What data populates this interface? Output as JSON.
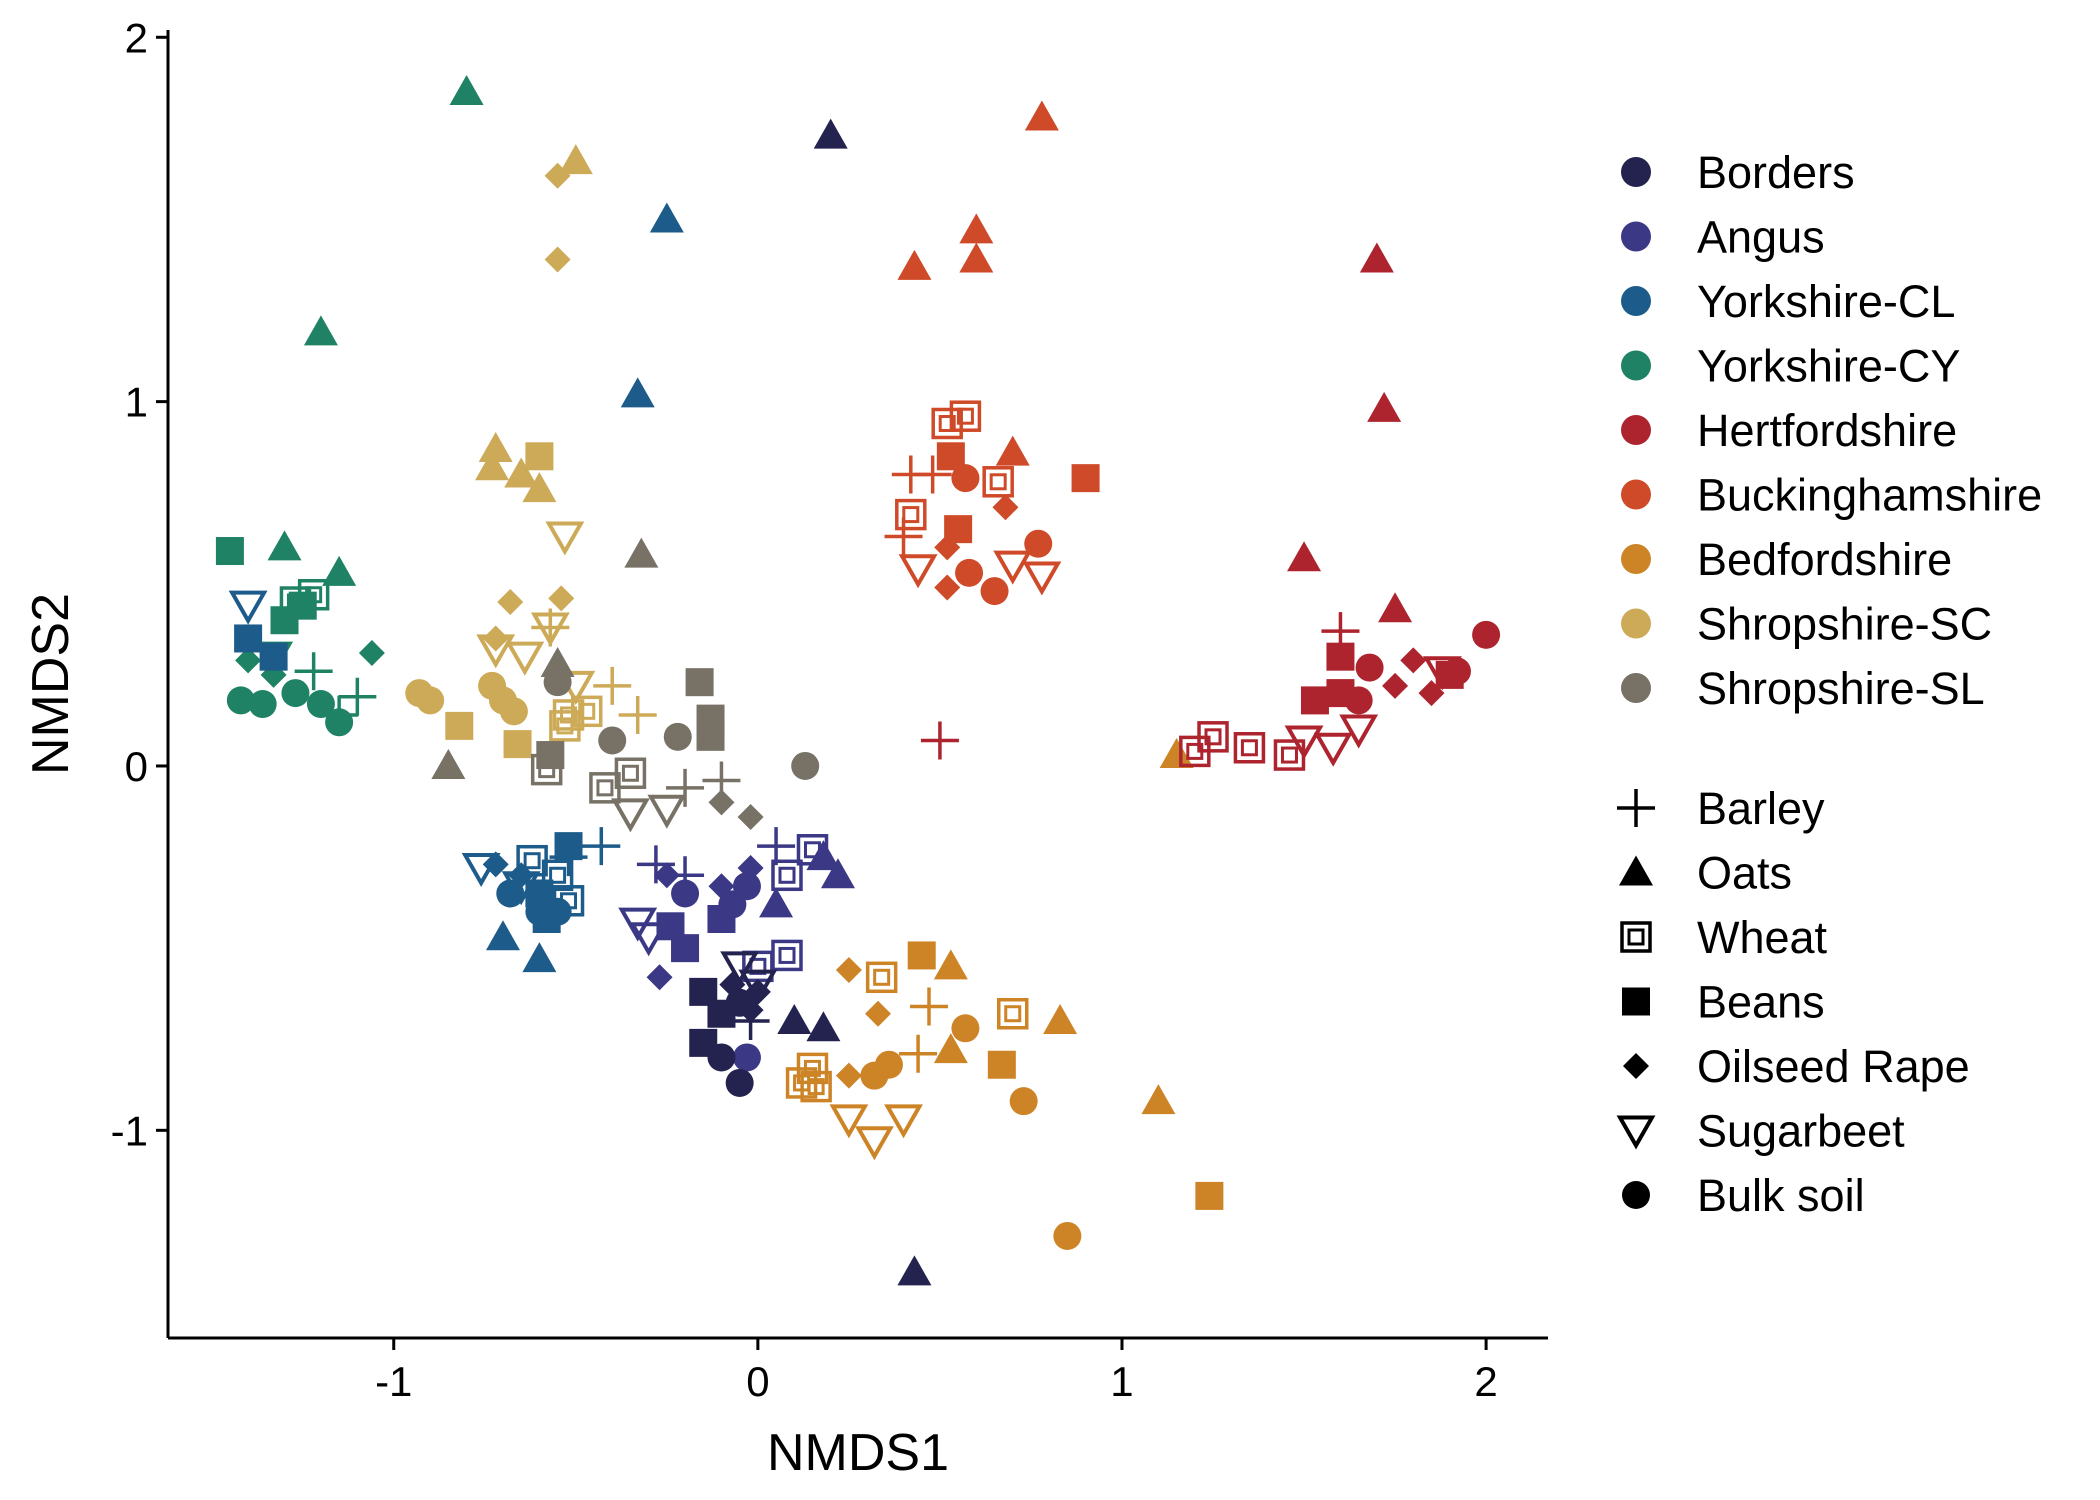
{
  "chart_data": {
    "type": "scatter",
    "xlabel": "NMDS1",
    "ylabel": "NMDS2",
    "xlim": [
      -1.62,
      2.17
    ],
    "ylim": [
      -1.57,
      2.02
    ],
    "xticks": [
      -1,
      0,
      1,
      2
    ],
    "yticks": [
      -1,
      0,
      1,
      2
    ],
    "grid": false,
    "legend_position": "right",
    "sites": [
      {
        "name": "Borders",
        "color": "#24224f"
      },
      {
        "name": "Angus",
        "color": "#3b3886"
      },
      {
        "name": "Yorkshire-CL",
        "color": "#1d5c8a"
      },
      {
        "name": "Yorkshire-CY",
        "color": "#1f8264"
      },
      {
        "name": "Hertfordshire",
        "color": "#ad242e"
      },
      {
        "name": "Buckinghamshire",
        "color": "#cf4a28"
      },
      {
        "name": "Bedfordshire",
        "color": "#cd8426"
      },
      {
        "name": "Shropshire-SC",
        "color": "#cdaa57"
      },
      {
        "name": "Shropshire-SL",
        "color": "#777166"
      }
    ],
    "crops": [
      {
        "name": "Barley",
        "shape": "plus"
      },
      {
        "name": "Oats",
        "shape": "triangle"
      },
      {
        "name": "Wheat",
        "shape": "double-square"
      },
      {
        "name": "Beans",
        "shape": "square"
      },
      {
        "name": "Oilseed Rape",
        "shape": "diamond"
      },
      {
        "name": "Sugarbeet",
        "shape": "down-triangle-open"
      },
      {
        "name": "Bulk soil",
        "shape": "circle"
      }
    ],
    "points": [
      [
        "Yorkshire-CY",
        "Oats",
        -0.8,
        1.85
      ],
      [
        "Yorkshire-CY",
        "Oats",
        -1.2,
        1.19
      ],
      [
        "Yorkshire-CY",
        "Oats",
        -1.3,
        0.6
      ],
      [
        "Yorkshire-CY",
        "Oats",
        -1.15,
        0.53
      ],
      [
        "Yorkshire-CY",
        "Beans",
        -1.45,
        0.59
      ],
      [
        "Yorkshire-CY",
        "Beans",
        -1.3,
        0.4
      ],
      [
        "Yorkshire-CY",
        "Beans",
        -1.25,
        0.44
      ],
      [
        "Yorkshire-CY",
        "Wheat",
        -1.27,
        0.45
      ],
      [
        "Yorkshire-CY",
        "Wheat",
        -1.22,
        0.47
      ],
      [
        "Yorkshire-CY",
        "Oilseed Rape",
        -1.4,
        0.29
      ],
      [
        "Yorkshire-CY",
        "Oilseed Rape",
        -1.33,
        0.25
      ],
      [
        "Yorkshire-CY",
        "Oilseed Rape",
        -1.06,
        0.31
      ],
      [
        "Yorkshire-CY",
        "Bulk soil",
        -1.42,
        0.18
      ],
      [
        "Yorkshire-CY",
        "Bulk soil",
        -1.36,
        0.17
      ],
      [
        "Yorkshire-CY",
        "Bulk soil",
        -1.27,
        0.2
      ],
      [
        "Yorkshire-CY",
        "Bulk soil",
        -1.2,
        0.17
      ],
      [
        "Yorkshire-CY",
        "Bulk soil",
        -1.15,
        0.12
      ],
      [
        "Yorkshire-CY",
        "Barley",
        -1.22,
        0.26
      ],
      [
        "Yorkshire-CY",
        "Barley",
        -1.1,
        0.19
      ],
      [
        "Yorkshire-CY",
        "Barley",
        -1.15,
        0.14
      ],
      [
        "Yorkshire-CY",
        "Sugarbeet",
        -1.33,
        0.3
      ],
      [
        "Yorkshire-CL",
        "Oats",
        -0.25,
        1.5
      ],
      [
        "Yorkshire-CL",
        "Oats",
        -0.33,
        1.02
      ],
      [
        "Yorkshire-CL",
        "Oats",
        -0.7,
        -0.47
      ],
      [
        "Yorkshire-CL",
        "Oats",
        -0.6,
        -0.53
      ],
      [
        "Yorkshire-CL",
        "Sugarbeet",
        -1.4,
        0.44
      ],
      [
        "Yorkshire-CL",
        "Sugarbeet",
        -0.76,
        -0.28
      ],
      [
        "Yorkshire-CL",
        "Sugarbeet",
        -0.65,
        -0.33
      ],
      [
        "Yorkshire-CL",
        "Beans",
        -1.4,
        0.35
      ],
      [
        "Yorkshire-CL",
        "Beans",
        -1.33,
        0.3
      ],
      [
        "Yorkshire-CL",
        "Beans",
        -0.6,
        -0.35
      ],
      [
        "Yorkshire-CL",
        "Beans",
        -0.52,
        -0.22
      ],
      [
        "Yorkshire-CL",
        "Beans",
        -0.58,
        -0.42
      ],
      [
        "Yorkshire-CL",
        "Wheat",
        -0.62,
        -0.26
      ],
      [
        "Yorkshire-CL",
        "Wheat",
        -0.55,
        -0.3
      ],
      [
        "Yorkshire-CL",
        "Wheat",
        -0.52,
        -0.37
      ],
      [
        "Yorkshire-CL",
        "Bulk soil",
        -0.68,
        -0.35
      ],
      [
        "Yorkshire-CL",
        "Bulk soil",
        -0.6,
        -0.4
      ],
      [
        "Yorkshire-CL",
        "Bulk soil",
        -0.55,
        -0.4
      ],
      [
        "Yorkshire-CL",
        "Oilseed Rape",
        -0.65,
        -0.3
      ],
      [
        "Yorkshire-CL",
        "Oilseed Rape",
        -0.72,
        -0.27
      ],
      [
        "Yorkshire-CL",
        "Barley",
        -0.43,
        -0.22
      ],
      [
        "Yorkshire-CL",
        "Barley",
        -0.52,
        -0.25
      ],
      [
        "Shropshire-SC",
        "Oats",
        -0.5,
        1.66
      ],
      [
        "Shropshire-SC",
        "Oats",
        -0.72,
        0.87
      ],
      [
        "Shropshire-SC",
        "Oats",
        -0.73,
        0.82
      ],
      [
        "Shropshire-SC",
        "Oats",
        -0.65,
        0.8
      ],
      [
        "Shropshire-SC",
        "Oats",
        -0.6,
        0.76
      ],
      [
        "Shropshire-SC",
        "Oilseed Rape",
        -0.55,
        1.62
      ],
      [
        "Shropshire-SC",
        "Oilseed Rape",
        -0.55,
        1.39
      ],
      [
        "Shropshire-SC",
        "Oilseed Rape",
        -0.68,
        0.45
      ],
      [
        "Shropshire-SC",
        "Oilseed Rape",
        -0.54,
        0.46
      ],
      [
        "Shropshire-SC",
        "Oilseed Rape",
        -0.72,
        0.35
      ],
      [
        "Shropshire-SC",
        "Beans",
        -0.6,
        0.85
      ],
      [
        "Shropshire-SC",
        "Beans",
        -0.82,
        0.11
      ],
      [
        "Shropshire-SC",
        "Beans",
        -0.66,
        0.06
      ],
      [
        "Shropshire-SC",
        "Sugarbeet",
        -0.53,
        0.63
      ],
      [
        "Shropshire-SC",
        "Sugarbeet",
        -0.57,
        0.38
      ],
      [
        "Shropshire-SC",
        "Sugarbeet",
        -0.72,
        0.32
      ],
      [
        "Shropshire-SC",
        "Sugarbeet",
        -0.64,
        0.3
      ],
      [
        "Shropshire-SC",
        "Sugarbeet",
        -0.5,
        0.22
      ],
      [
        "Shropshire-SC",
        "Bulk soil",
        -0.93,
        0.2
      ],
      [
        "Shropshire-SC",
        "Bulk soil",
        -0.9,
        0.18
      ],
      [
        "Shropshire-SC",
        "Bulk soil",
        -0.73,
        0.22
      ],
      [
        "Shropshire-SC",
        "Bulk soil",
        -0.7,
        0.18
      ],
      [
        "Shropshire-SC",
        "Bulk soil",
        -0.67,
        0.15
      ],
      [
        "Shropshire-SC",
        "Wheat",
        -0.52,
        0.14
      ],
      [
        "Shropshire-SC",
        "Wheat",
        -0.47,
        0.15
      ],
      [
        "Shropshire-SC",
        "Wheat",
        -0.53,
        0.11
      ],
      [
        "Shropshire-SC",
        "Barley",
        -0.57,
        0.38
      ],
      [
        "Shropshire-SC",
        "Barley",
        -0.4,
        0.22
      ],
      [
        "Shropshire-SC",
        "Barley",
        -0.33,
        0.14
      ],
      [
        "Shropshire-SL",
        "Oats",
        -0.32,
        0.58
      ],
      [
        "Shropshire-SL",
        "Oats",
        -0.85,
        0.0
      ],
      [
        "Shropshire-SL",
        "Oats",
        -0.55,
        0.28
      ],
      [
        "Shropshire-SL",
        "Bulk soil",
        -0.55,
        0.23
      ],
      [
        "Shropshire-SL",
        "Bulk soil",
        -0.4,
        0.07
      ],
      [
        "Shropshire-SL",
        "Bulk soil",
        -0.22,
        0.08
      ],
      [
        "Shropshire-SL",
        "Bulk soil",
        0.13,
        0.0
      ],
      [
        "Shropshire-SL",
        "Beans",
        -0.57,
        0.03
      ],
      [
        "Shropshire-SL",
        "Beans",
        -0.16,
        0.23
      ],
      [
        "Shropshire-SL",
        "Beans",
        -0.13,
        0.13
      ],
      [
        "Shropshire-SL",
        "Beans",
        -0.13,
        0.08
      ],
      [
        "Shropshire-SL",
        "Wheat",
        -0.58,
        -0.01
      ],
      [
        "Shropshire-SL",
        "Wheat",
        -0.42,
        -0.06
      ],
      [
        "Shropshire-SL",
        "Wheat",
        -0.35,
        -0.02
      ],
      [
        "Shropshire-SL",
        "Sugarbeet",
        -0.35,
        -0.13
      ],
      [
        "Shropshire-SL",
        "Sugarbeet",
        -0.25,
        -0.12
      ],
      [
        "Shropshire-SL",
        "Oilseed Rape",
        -0.1,
        -0.1
      ],
      [
        "Shropshire-SL",
        "Oilseed Rape",
        -0.02,
        -0.14
      ],
      [
        "Shropshire-SL",
        "Barley",
        -0.1,
        -0.04
      ],
      [
        "Shropshire-SL",
        "Barley",
        -0.2,
        -0.06
      ],
      [
        "Angus",
        "Barley",
        -0.28,
        -0.27
      ],
      [
        "Angus",
        "Barley",
        -0.2,
        -0.3
      ],
      [
        "Angus",
        "Barley",
        0.05,
        -0.22
      ],
      [
        "Angus",
        "Oilseed Rape",
        -0.25,
        -0.3
      ],
      [
        "Angus",
        "Oilseed Rape",
        -0.1,
        -0.33
      ],
      [
        "Angus",
        "Oilseed Rape",
        -0.02,
        -0.28
      ],
      [
        "Angus",
        "Oilseed Rape",
        -0.27,
        -0.58
      ],
      [
        "Angus",
        "Wheat",
        0.15,
        -0.23
      ],
      [
        "Angus",
        "Wheat",
        0.08,
        -0.3
      ],
      [
        "Angus",
        "Wheat",
        0.08,
        -0.52
      ],
      [
        "Angus",
        "Wheat",
        0.0,
        -0.55
      ],
      [
        "Angus",
        "Oats",
        0.18,
        -0.25
      ],
      [
        "Angus",
        "Oats",
        0.22,
        -0.3
      ],
      [
        "Angus",
        "Oats",
        0.05,
        -0.38
      ],
      [
        "Angus",
        "Sugarbeet",
        -0.33,
        -0.43
      ],
      [
        "Angus",
        "Sugarbeet",
        -0.3,
        -0.47
      ],
      [
        "Angus",
        "Beans",
        -0.24,
        -0.44
      ],
      [
        "Angus",
        "Beans",
        -0.2,
        -0.5
      ],
      [
        "Angus",
        "Beans",
        -0.1,
        -0.42
      ],
      [
        "Angus",
        "Bulk soil",
        -0.2,
        -0.35
      ],
      [
        "Angus",
        "Bulk soil",
        -0.07,
        -0.38
      ],
      [
        "Angus",
        "Bulk soil",
        -0.03,
        -0.33
      ],
      [
        "Angus",
        "Bulk soil",
        -0.03,
        -0.8
      ],
      [
        "Borders",
        "Oats",
        0.2,
        1.73
      ],
      [
        "Borders",
        "Oats",
        0.43,
        -1.39
      ],
      [
        "Borders",
        "Oats",
        0.1,
        -0.7
      ],
      [
        "Borders",
        "Oats",
        0.18,
        -0.72
      ],
      [
        "Borders",
        "Beans",
        -0.15,
        -0.62
      ],
      [
        "Borders",
        "Beans",
        -0.1,
        -0.68
      ],
      [
        "Borders",
        "Beans",
        -0.15,
        -0.76
      ],
      [
        "Borders",
        "Bulk soil",
        -0.05,
        -0.65
      ],
      [
        "Borders",
        "Bulk soil",
        -0.1,
        -0.8
      ],
      [
        "Borders",
        "Bulk soil",
        -0.05,
        -0.87
      ],
      [
        "Borders",
        "Oilseed Rape",
        -0.07,
        -0.6
      ],
      [
        "Borders",
        "Oilseed Rape",
        -0.02,
        -0.67
      ],
      [
        "Borders",
        "Oilseed Rape",
        0.0,
        -0.62
      ],
      [
        "Borders",
        "Sugarbeet",
        -0.05,
        -0.55
      ],
      [
        "Borders",
        "Sugarbeet",
        0.0,
        -0.6
      ],
      [
        "Borders",
        "Barley",
        -0.02,
        -0.7
      ],
      [
        "Bedfordshire",
        "Beans",
        0.45,
        -0.52
      ],
      [
        "Bedfordshire",
        "Beans",
        0.67,
        -0.82
      ],
      [
        "Bedfordshire",
        "Beans",
        1.24,
        -1.18
      ],
      [
        "Bedfordshire",
        "Oats",
        0.53,
        -0.55
      ],
      [
        "Bedfordshire",
        "Oats",
        0.83,
        -0.7
      ],
      [
        "Bedfordshire",
        "Oats",
        1.1,
        -0.92
      ],
      [
        "Bedfordshire",
        "Oats",
        0.53,
        -0.78
      ],
      [
        "Bedfordshire",
        "Oats",
        1.15,
        0.03
      ],
      [
        "Bedfordshire",
        "Wheat",
        0.34,
        -0.58
      ],
      [
        "Bedfordshire",
        "Wheat",
        0.7,
        -0.68
      ],
      [
        "Bedfordshire",
        "Wheat",
        0.15,
        -0.83
      ],
      [
        "Bedfordshire",
        "Wheat",
        0.16,
        -0.88
      ],
      [
        "Bedfordshire",
        "Wheat",
        0.12,
        -0.87
      ],
      [
        "Bedfordshire",
        "Oilseed Rape",
        0.25,
        -0.56
      ],
      [
        "Bedfordshire",
        "Oilseed Rape",
        0.33,
        -0.68
      ],
      [
        "Bedfordshire",
        "Oilseed Rape",
        0.25,
        -0.85
      ],
      [
        "Bedfordshire",
        "Barley",
        0.47,
        -0.66
      ],
      [
        "Bedfordshire",
        "Barley",
        0.44,
        -0.79
      ],
      [
        "Bedfordshire",
        "Bulk soil",
        0.57,
        -0.72
      ],
      [
        "Bedfordshire",
        "Bulk soil",
        0.36,
        -0.82
      ],
      [
        "Bedfordshire",
        "Bulk soil",
        0.32,
        -0.85
      ],
      [
        "Bedfordshire",
        "Bulk soil",
        0.73,
        -0.92
      ],
      [
        "Bedfordshire",
        "Bulk soil",
        0.85,
        -1.29
      ],
      [
        "Bedfordshire",
        "Sugarbeet",
        0.25,
        -0.97
      ],
      [
        "Bedfordshire",
        "Sugarbeet",
        0.32,
        -1.03
      ],
      [
        "Bedfordshire",
        "Sugarbeet",
        0.4,
        -0.97
      ],
      [
        "Buckinghamshire",
        "Oats",
        0.78,
        1.78
      ],
      [
        "Buckinghamshire",
        "Oats",
        0.6,
        1.47
      ],
      [
        "Buckinghamshire",
        "Oats",
        0.6,
        1.39
      ],
      [
        "Buckinghamshire",
        "Oats",
        0.43,
        1.37
      ],
      [
        "Buckinghamshire",
        "Oats",
        0.7,
        0.86
      ],
      [
        "Buckinghamshire",
        "Wheat",
        0.57,
        0.96
      ],
      [
        "Buckinghamshire",
        "Wheat",
        0.52,
        0.94
      ],
      [
        "Buckinghamshire",
        "Wheat",
        0.42,
        0.69
      ],
      [
        "Buckinghamshire",
        "Wheat",
        0.66,
        0.78
      ],
      [
        "Buckinghamshire",
        "Beans",
        0.53,
        0.85
      ],
      [
        "Buckinghamshire",
        "Beans",
        0.9,
        0.79
      ],
      [
        "Buckinghamshire",
        "Beans",
        0.55,
        0.65
      ],
      [
        "Buckinghamshire",
        "Barley",
        0.42,
        0.8
      ],
      [
        "Buckinghamshire",
        "Barley",
        0.48,
        0.8
      ],
      [
        "Buckinghamshire",
        "Barley",
        0.4,
        0.63
      ],
      [
        "Buckinghamshire",
        "Bulk soil",
        0.57,
        0.79
      ],
      [
        "Buckinghamshire",
        "Bulk soil",
        0.58,
        0.53
      ],
      [
        "Buckinghamshire",
        "Bulk soil",
        0.65,
        0.48
      ],
      [
        "Buckinghamshire",
        "Bulk soil",
        0.77,
        0.61
      ],
      [
        "Buckinghamshire",
        "Oilseed Rape",
        0.52,
        0.6
      ],
      [
        "Buckinghamshire",
        "Oilseed Rape",
        0.52,
        0.49
      ],
      [
        "Buckinghamshire",
        "Oilseed Rape",
        0.68,
        0.71
      ],
      [
        "Buckinghamshire",
        "Sugarbeet",
        0.44,
        0.54
      ],
      [
        "Buckinghamshire",
        "Sugarbeet",
        0.7,
        0.55
      ],
      [
        "Buckinghamshire",
        "Sugarbeet",
        0.78,
        0.52
      ],
      [
        "Hertfordshire",
        "Oats",
        1.7,
        1.39
      ],
      [
        "Hertfordshire",
        "Oats",
        1.72,
        0.98
      ],
      [
        "Hertfordshire",
        "Oats",
        1.5,
        0.57
      ],
      [
        "Hertfordshire",
        "Oats",
        1.75,
        0.43
      ],
      [
        "Hertfordshire",
        "Barley",
        1.6,
        0.37
      ],
      [
        "Hertfordshire",
        "Barley",
        0.5,
        0.07
      ],
      [
        "Hertfordshire",
        "Beans",
        1.6,
        0.3
      ],
      [
        "Hertfordshire",
        "Beans",
        1.9,
        0.25
      ],
      [
        "Hertfordshire",
        "Beans",
        1.53,
        0.18
      ],
      [
        "Hertfordshire",
        "Beans",
        1.6,
        0.2
      ],
      [
        "Hertfordshire",
        "Bulk soil",
        1.68,
        0.27
      ],
      [
        "Hertfordshire",
        "Bulk soil",
        2.0,
        0.36
      ],
      [
        "Hertfordshire",
        "Bulk soil",
        1.65,
        0.18
      ],
      [
        "Hertfordshire",
        "Bulk soil",
        1.92,
        0.26
      ],
      [
        "Hertfordshire",
        "Oilseed Rape",
        1.8,
        0.29
      ],
      [
        "Hertfordshire",
        "Oilseed Rape",
        1.85,
        0.2
      ],
      [
        "Hertfordshire",
        "Oilseed Rape",
        1.75,
        0.22
      ],
      [
        "Hertfordshire",
        "Wheat",
        1.2,
        0.04
      ],
      [
        "Hertfordshire",
        "Wheat",
        1.25,
        0.08
      ],
      [
        "Hertfordshire",
        "Wheat",
        1.35,
        0.05
      ],
      [
        "Hertfordshire",
        "Wheat",
        1.46,
        0.03
      ],
      [
        "Hertfordshire",
        "Sugarbeet",
        1.5,
        0.07
      ],
      [
        "Hertfordshire",
        "Sugarbeet",
        1.58,
        0.05
      ],
      [
        "Hertfordshire",
        "Sugarbeet",
        1.65,
        0.1
      ],
      [
        "Hertfordshire",
        "Sugarbeet",
        1.88,
        0.26
      ]
    ]
  }
}
